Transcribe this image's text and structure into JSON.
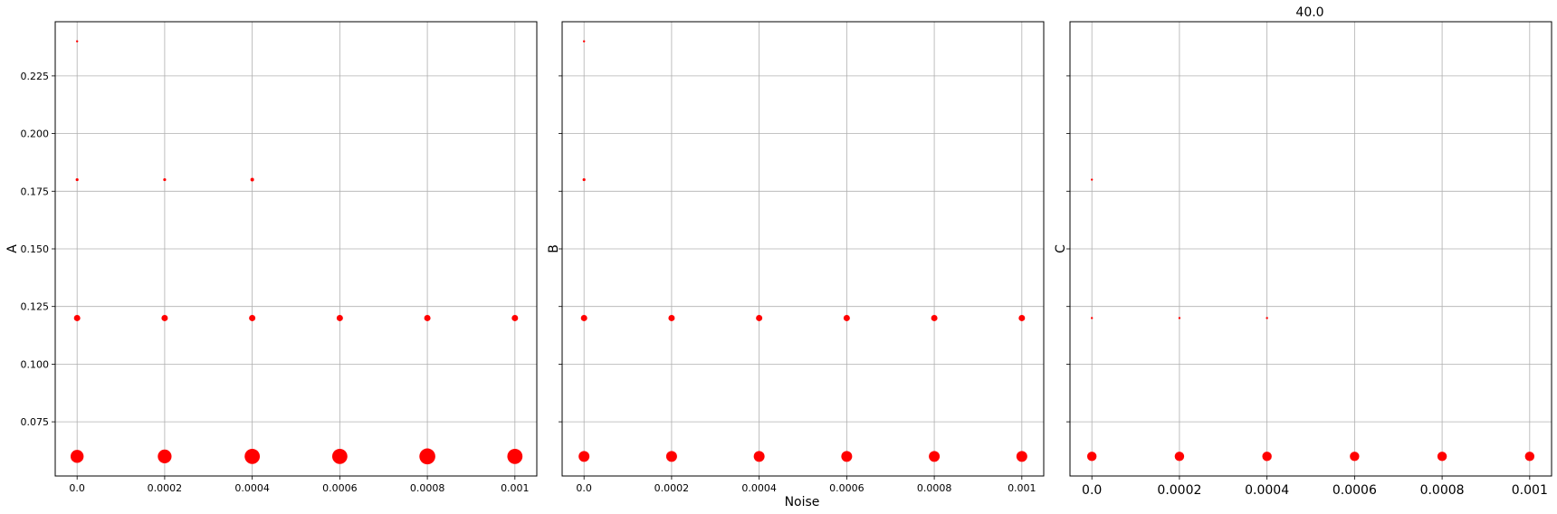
{
  "chart_data": {
    "type": "scatter",
    "suptitle": "40.0",
    "xlabel": "Noise",
    "xlim": [
      -5e-05,
      0.00105
    ],
    "ylim": [
      0.0515,
      0.2485
    ],
    "x_ticks": [
      0.0,
      0.0002,
      0.0004,
      0.0006,
      0.0008,
      0.001
    ],
    "x_tick_labels": [
      "0.0",
      "0.0002",
      "0.0004",
      "0.0006",
      "0.0008",
      "0.001"
    ],
    "y_ticks": [
      0.075,
      0.1,
      0.125,
      0.15,
      0.175,
      0.2,
      0.225
    ],
    "y_tick_labels": [
      "0.075",
      "0.100",
      "0.125",
      "0.150",
      "0.175",
      "0.200",
      "0.225"
    ],
    "grid": true,
    "marker_color": "#ff0000",
    "point_size_meaning": "marker area encodes a per-point magnitude (relative units)",
    "panels": [
      {
        "ylabel": "A",
        "points": [
          {
            "x": 0.0,
            "y": 0.24,
            "size": 1.2
          },
          {
            "x": 0.0,
            "y": 0.18,
            "size": 1.6
          },
          {
            "x": 0.0002,
            "y": 0.18,
            "size": 1.6
          },
          {
            "x": 0.0004,
            "y": 0.18,
            "size": 2.0
          },
          {
            "x": 0.0,
            "y": 0.12,
            "size": 3.5
          },
          {
            "x": 0.0002,
            "y": 0.12,
            "size": 3.5
          },
          {
            "x": 0.0004,
            "y": 0.12,
            "size": 3.5
          },
          {
            "x": 0.0006,
            "y": 0.12,
            "size": 3.5
          },
          {
            "x": 0.0008,
            "y": 0.12,
            "size": 3.5
          },
          {
            "x": 0.001,
            "y": 0.12,
            "size": 3.5
          },
          {
            "x": 0.0,
            "y": 0.06,
            "size": 7.2
          },
          {
            "x": 0.0002,
            "y": 0.06,
            "size": 7.6
          },
          {
            "x": 0.0004,
            "y": 0.06,
            "size": 8.4
          },
          {
            "x": 0.0006,
            "y": 0.06,
            "size": 8.4
          },
          {
            "x": 0.0008,
            "y": 0.06,
            "size": 8.8
          },
          {
            "x": 0.001,
            "y": 0.06,
            "size": 8.4
          }
        ]
      },
      {
        "ylabel": "B",
        "points": [
          {
            "x": 0.0,
            "y": 0.24,
            "size": 1.2
          },
          {
            "x": 0.0,
            "y": 0.18,
            "size": 1.6
          },
          {
            "x": 0.0,
            "y": 0.12,
            "size": 3.5
          },
          {
            "x": 0.0002,
            "y": 0.12,
            "size": 3.5
          },
          {
            "x": 0.0004,
            "y": 0.12,
            "size": 3.5
          },
          {
            "x": 0.0006,
            "y": 0.12,
            "size": 3.5
          },
          {
            "x": 0.0008,
            "y": 0.12,
            "size": 3.5
          },
          {
            "x": 0.001,
            "y": 0.12,
            "size": 3.5
          },
          {
            "x": 0.0,
            "y": 0.06,
            "size": 6.0
          },
          {
            "x": 0.0002,
            "y": 0.06,
            "size": 6.0
          },
          {
            "x": 0.0004,
            "y": 0.06,
            "size": 6.0
          },
          {
            "x": 0.0006,
            "y": 0.06,
            "size": 6.0
          },
          {
            "x": 0.0008,
            "y": 0.06,
            "size": 6.0
          },
          {
            "x": 0.001,
            "y": 0.06,
            "size": 6.0
          }
        ]
      },
      {
        "ylabel": "C",
        "points": [
          {
            "x": 0.0,
            "y": 0.18,
            "size": 1.2
          },
          {
            "x": 0.0,
            "y": 0.12,
            "size": 1.2
          },
          {
            "x": 0.0002,
            "y": 0.12,
            "size": 1.2
          },
          {
            "x": 0.0004,
            "y": 0.12,
            "size": 1.2
          },
          {
            "x": 0.0,
            "y": 0.06,
            "size": 5.2
          },
          {
            "x": 0.0002,
            "y": 0.06,
            "size": 5.2
          },
          {
            "x": 0.0004,
            "y": 0.06,
            "size": 5.2
          },
          {
            "x": 0.0006,
            "y": 0.06,
            "size": 5.2
          },
          {
            "x": 0.0008,
            "y": 0.06,
            "size": 5.2
          },
          {
            "x": 0.001,
            "y": 0.06,
            "size": 5.2
          }
        ]
      }
    ]
  }
}
